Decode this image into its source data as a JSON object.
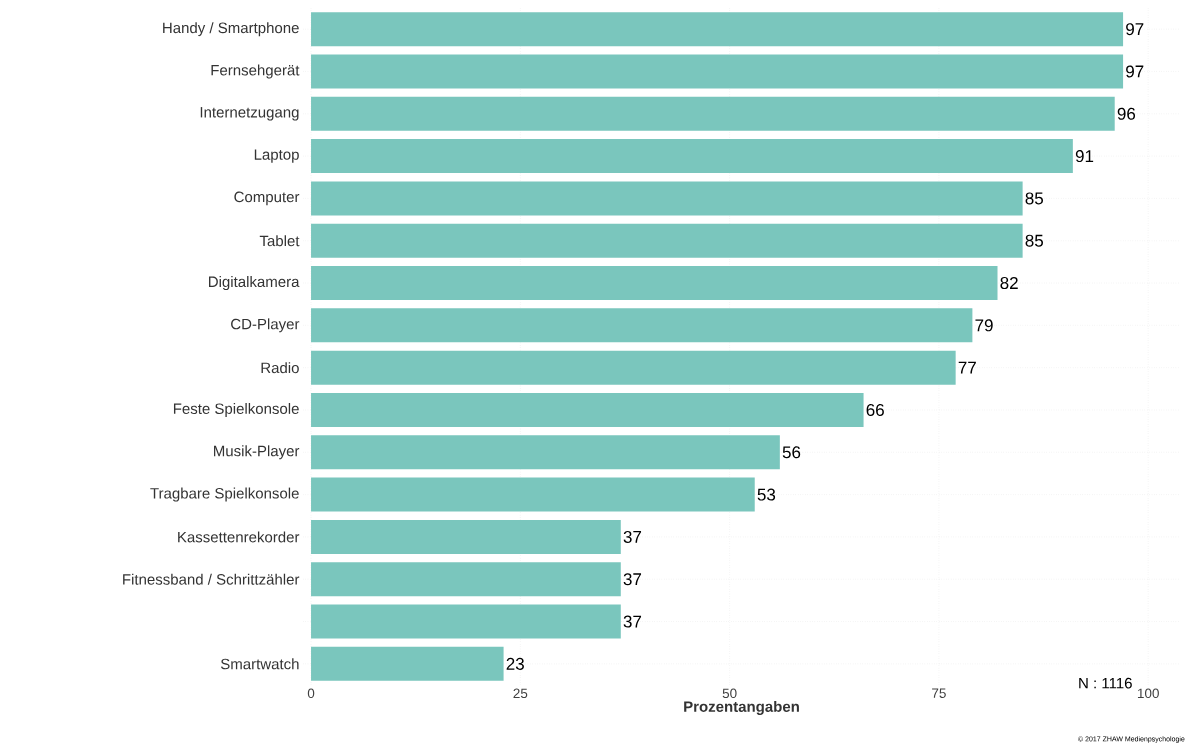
{
  "chart_data": {
    "type": "bar",
    "orientation": "horizontal",
    "xlabel": "Prozentangaben",
    "categories": [
      "Handy / Smartphone",
      "Fernsehgerät",
      "Internetzugang",
      "Laptop",
      "Computer",
      "Tablet",
      "Digitalkamera",
      "CD-Player",
      "Radio",
      "Feste Spielkonsole",
      "Musik-Player",
      "Tragbare Spielkonsole",
      "Kassettenrekorder",
      "Fitnessband / Schrittzähler",
      null,
      "Smartwatch"
    ],
    "values": [
      97,
      97,
      96,
      91,
      85,
      85,
      82,
      79,
      77,
      66,
      56,
      53,
      37,
      37,
      37,
      23
    ],
    "color": "#7ac6bd",
    "data_labels": true,
    "grid": true,
    "xlim": [
      -0.96,
      103.8
    ],
    "xticks": [
      0,
      25,
      50,
      75,
      100
    ],
    "annotations": [
      "N : 1116",
      "© 2017 ZHAW Medienpsychologie"
    ]
  }
}
